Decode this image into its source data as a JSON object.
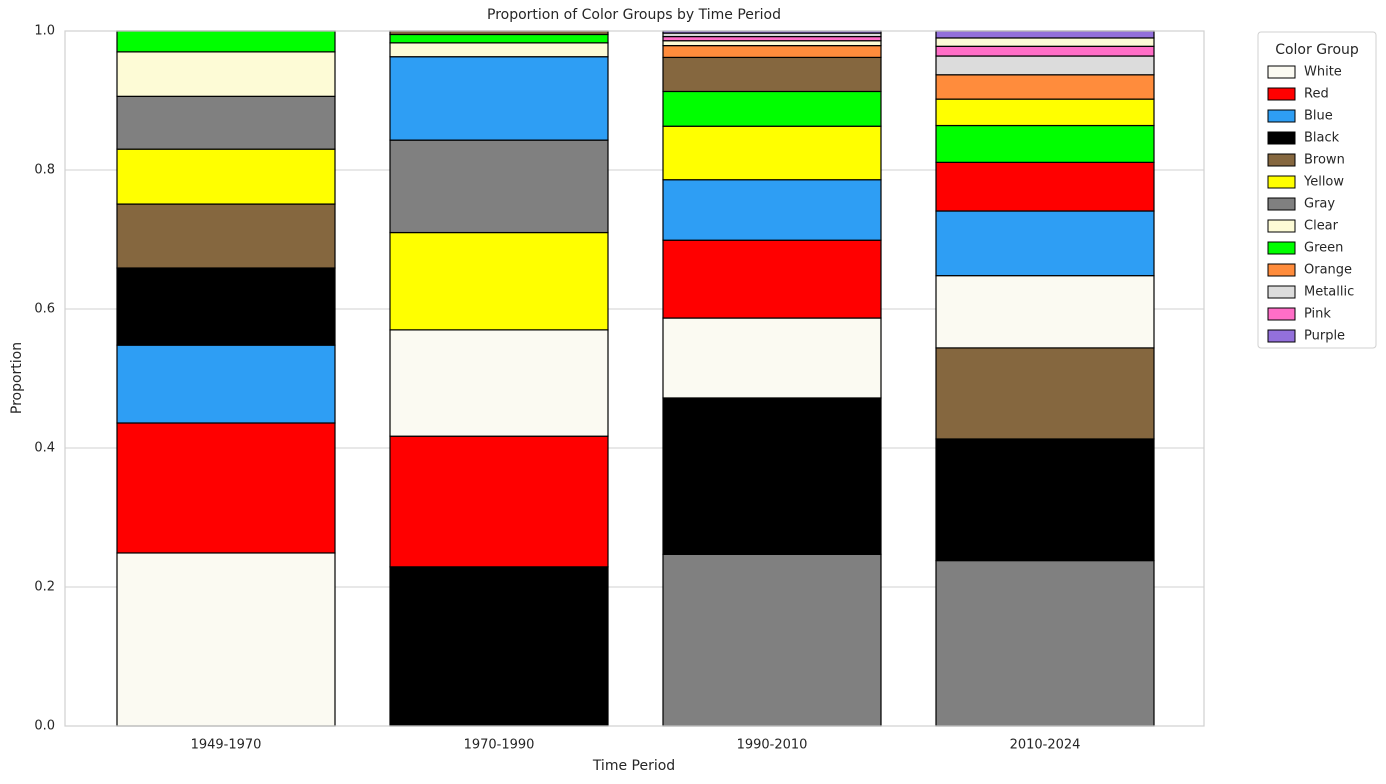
{
  "chart_data": {
    "type": "stacked_bar",
    "title": "Proportion of Color Groups by Time Period",
    "x_label": "Time Period",
    "y_label": "Proportion",
    "categories": [
      "1949-1970",
      "1970-1990",
      "1990-2010",
      "2010-2024"
    ],
    "stack_order": "descending",
    "ylim": [
      0,
      1
    ],
    "yticks": [
      {
        "value": 0,
        "label": "0.0"
      },
      0.2,
      0.4,
      0.6,
      0.8,
      {
        "value": 1,
        "label": "1.0"
      }
    ],
    "grid": true,
    "legend_title": "Color Group",
    "legend_position": "outside-right",
    "series": [
      {
        "name": "White",
        "color": "#fbfaf2",
        "values": [
          0.249,
          0.153,
          0.115,
          0.104
        ]
      },
      {
        "name": "Red",
        "color": "#ff0000",
        "values": [
          0.187,
          0.188,
          0.112,
          0.07
        ]
      },
      {
        "name": "Blue",
        "color": "#2e9ef4",
        "values": [
          0.112,
          0.12,
          0.087,
          0.093
        ]
      },
      {
        "name": "Black",
        "color": "#000000",
        "values": [
          0.111,
          0.229,
          0.225,
          0.175
        ]
      },
      {
        "name": "Brown",
        "color": "#85673f",
        "values": [
          0.092,
          0.005,
          0.049,
          0.131
        ]
      },
      {
        "name": "Yellow",
        "color": "#ffff00",
        "values": [
          0.079,
          0.14,
          0.077,
          0.038
        ]
      },
      {
        "name": "Gray",
        "color": "#808080",
        "values": [
          0.076,
          0.133,
          0.247,
          0.238
        ]
      },
      {
        "name": "Clear",
        "color": "#fdfbd6",
        "values": [
          0.064,
          0.02,
          0.007,
          0.012
        ]
      },
      {
        "name": "Green",
        "color": "#00ff00",
        "values": [
          0.03,
          0.012,
          0.05,
          0.053
        ]
      },
      {
        "name": "Orange",
        "color": "#ff8c3c",
        "values": [
          0,
          0,
          0.017,
          0.035
        ]
      },
      {
        "name": "Metallic",
        "color": "#dcdcdc",
        "values": [
          0,
          0,
          0.005,
          0.027
        ]
      },
      {
        "name": "Pink",
        "color": "#ff6ec7",
        "values": [
          0,
          0,
          0.006,
          0.014
        ]
      },
      {
        "name": "Purple",
        "color": "#9370db",
        "values": [
          0,
          0,
          0.003,
          0.01
        ]
      }
    ]
  }
}
